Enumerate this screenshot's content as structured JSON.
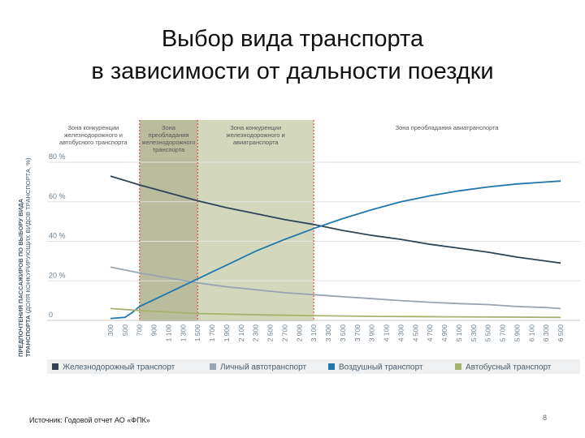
{
  "title_line1": "Выбор вида транспорта",
  "title_line2": "в зависимости от дальности поездки",
  "source": "Источник: Годовой отчет АО «ФПК»",
  "page_number": "8",
  "chart_data": {
    "type": "line",
    "ylabel_bold": "ПРЕДПОЧТЕНИЯ ПАССАЖИРОВ ПО ВЫБОРУ ВИДА ТРАНСПОРТА",
    "ylabel_rest": "(ДОЛЯ КОНКУРИРУЮЩИХ ВИДОВ ТРАНСПОРТА, %)",
    "yticks": [
      "0",
      "20 %",
      "40 %",
      "60 %",
      "80 %"
    ],
    "ytick_values": [
      0,
      20,
      40,
      60,
      80
    ],
    "ylim": [
      0,
      90
    ],
    "xlim": [
      300,
      6500
    ],
    "x": [
      300,
      500,
      700,
      900,
      1100,
      1300,
      1500,
      1700,
      1900,
      2100,
      2300,
      2500,
      2700,
      2900,
      3100,
      3300,
      3500,
      3700,
      3900,
      4100,
      4300,
      4500,
      4700,
      4900,
      5100,
      5300,
      5500,
      5700,
      5900,
      6100,
      6300,
      6500
    ],
    "x_labels": [
      "300",
      "500",
      "700",
      "900",
      "1 100",
      "1 300",
      "1 500",
      "1 700",
      "1 900",
      "2 100",
      "2 300",
      "2 500",
      "2 700",
      "2 900",
      "3 100",
      "3 300",
      "3 500",
      "3 700",
      "3 900",
      "4 100",
      "4 300",
      "4 500",
      "4 700",
      "4 900",
      "5 100",
      "5 300",
      "5 500",
      "5 700",
      "5 900",
      "6 100",
      "6 300",
      "6 500"
    ],
    "zones": [
      {
        "label": "Зона конкуренции железнодорожного и автобусного транспорта",
        "x_start": 0,
        "x_end": 700,
        "color": "#ffffff"
      },
      {
        "label": "Зона преобладания железнодорожного транспорта",
        "x_start": 700,
        "x_end": 1500,
        "color": "#b9bc9d"
      },
      {
        "label": "Зона конкуренции железнодорожного и авиатранспорта",
        "x_start": 1500,
        "x_end": 3100,
        "color": "#d3d8bd"
      },
      {
        "label": "Зона преобладания авиатранспорта",
        "x_start": 3100,
        "x_end": 6900,
        "color": "#ffffff"
      }
    ],
    "zone_boundaries": [
      700,
      1500,
      3100
    ],
    "series": [
      {
        "name": "Железнодорожный транспорт",
        "color": "#2f4556",
        "x": [
          300,
          700,
          1100,
          1500,
          1900,
          2300,
          2700,
          3100,
          3500,
          3900,
          4300,
          4700,
          5100,
          5500,
          5900,
          6300,
          6500
        ],
        "values": [
          73,
          68.5,
          64.5,
          60.5,
          57,
          54,
          51,
          48.5,
          45.5,
          43,
          41,
          38.5,
          36.5,
          34.5,
          32,
          30,
          29
        ]
      },
      {
        "name": "Личный автотранспорт",
        "color": "#9aa4b0",
        "x": [
          300,
          700,
          1100,
          1500,
          1900,
          2300,
          2700,
          3100,
          3500,
          3900,
          4300,
          4700,
          5100,
          5500,
          5900,
          6300,
          6500
        ],
        "values": [
          27,
          24,
          21.5,
          19,
          17,
          15.5,
          14,
          13,
          12,
          11,
          10,
          9.2,
          8.5,
          8,
          7,
          6.5,
          6
        ]
      },
      {
        "name": "Воздушный транспорт",
        "color": "#1f77ad",
        "x": [
          300,
          500,
          600,
          700,
          1100,
          1500,
          1900,
          2300,
          2700,
          3100,
          3500,
          3900,
          4300,
          4700,
          5100,
          5500,
          5900,
          6300,
          6500
        ],
        "values": [
          1,
          1.5,
          4,
          7,
          14,
          21,
          28,
          35,
          41,
          46.5,
          51.5,
          56,
          60,
          63,
          65.5,
          67.5,
          69,
          70,
          70.5
        ]
      },
      {
        "name": "Автобусный транспорт",
        "color": "#a6b36f",
        "x": [
          300,
          700,
          1100,
          1500,
          2100,
          2700,
          3300,
          4000,
          5000,
          6500
        ],
        "values": [
          6,
          5,
          4.2,
          3.5,
          3,
          2.6,
          2.3,
          2,
          1.8,
          1.5
        ]
      }
    ]
  }
}
